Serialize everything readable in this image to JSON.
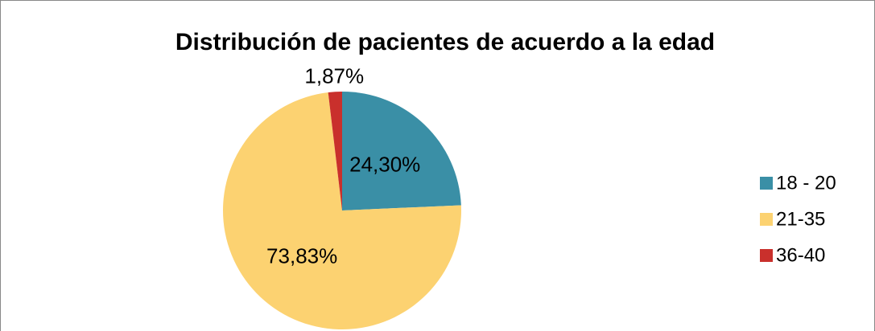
{
  "chart_data": {
    "type": "pie",
    "title": "Distribución de pacientes de acuerdo a la edad",
    "categories": [
      "18 - 20",
      "21-35",
      "36-40"
    ],
    "values": [
      24.3,
      73.83,
      1.87
    ],
    "value_labels": [
      "24,30%",
      "73,83%",
      "1,87%"
    ],
    "colors": [
      "#3a8fa6",
      "#fcd271",
      "#c9302c"
    ],
    "legend": "right"
  }
}
